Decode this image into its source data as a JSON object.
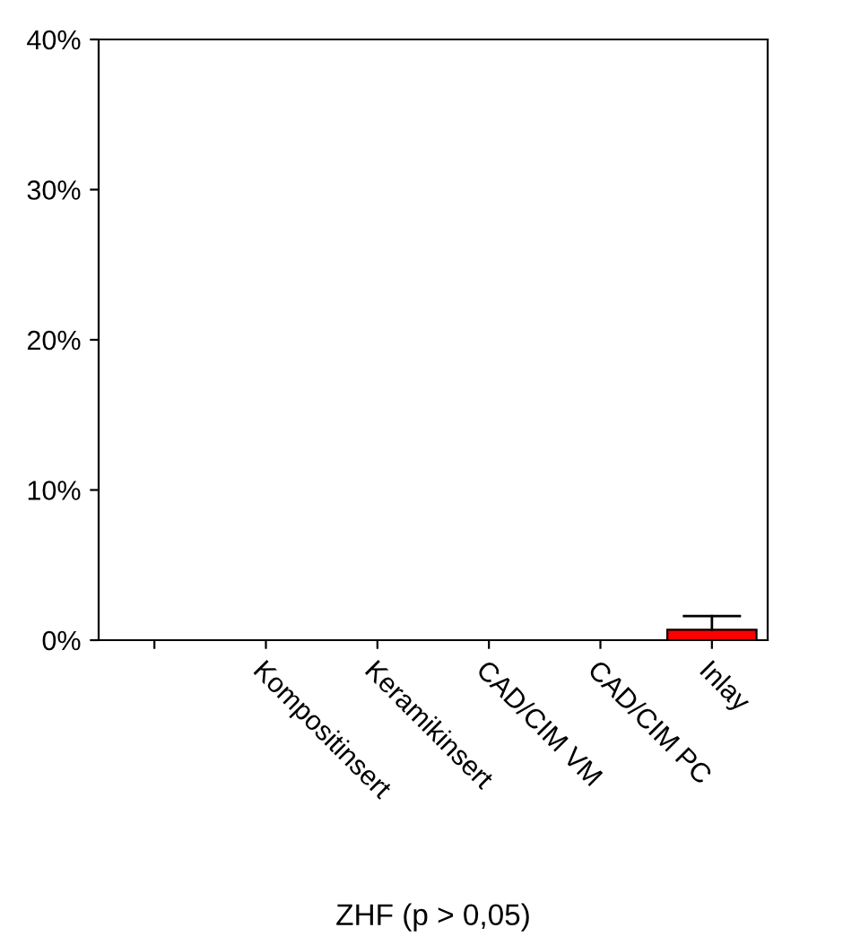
{
  "chart_data": {
    "type": "bar",
    "xlabel": "ZHF (p > 0,05)",
    "categories": [
      null,
      "Kompositinsert",
      "Keramikinsert",
      "CAD/CIM VM",
      "CAD/CIM PC",
      "Inlay"
    ],
    "values": [
      0,
      0,
      0,
      0,
      0,
      0.7
    ],
    "errors": [
      null,
      null,
      null,
      null,
      null,
      [
        0.7,
        1.6
      ]
    ],
    "color": "#ff0000",
    "ylim": [
      0,
      40
    ],
    "yticks": [
      {
        "value": 0,
        "label": "0%"
      },
      {
        "value": 10,
        "label": "10%"
      },
      {
        "value": 20,
        "label": "20%"
      },
      {
        "value": 30,
        "label": "30%"
      },
      {
        "value": 40,
        "label": "40%"
      }
    ],
    "grid": false,
    "legend": false
  }
}
